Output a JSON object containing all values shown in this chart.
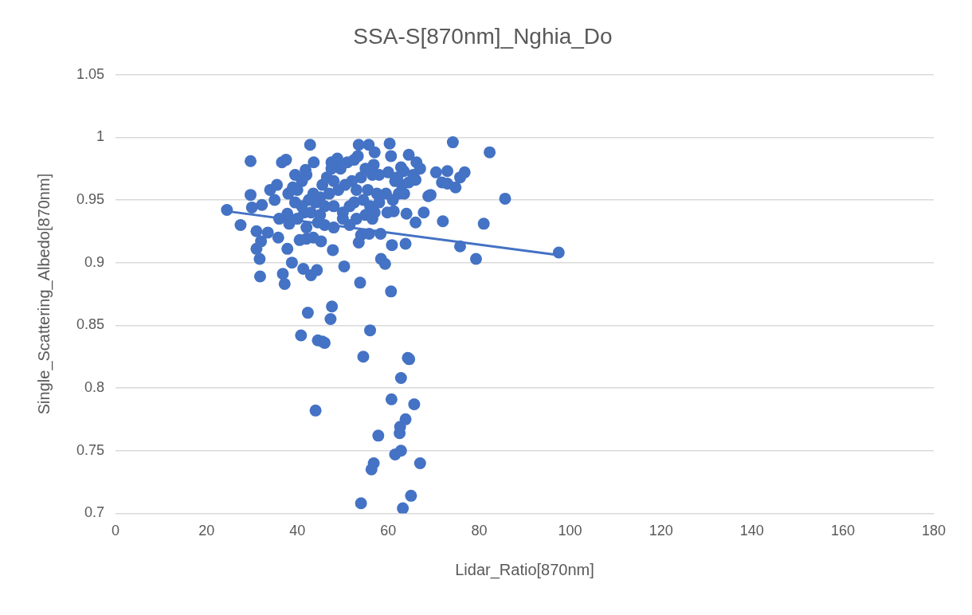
{
  "chart_data": {
    "type": "scatter",
    "title": "SSA-S[870nm]_Nghia_Do",
    "xlabel": "Lidar_Ratio[870nm]",
    "ylabel": "Single_Scattering_Albedo[870nm]",
    "xlim": [
      0,
      180
    ],
    "xticks": [
      0,
      20,
      40,
      60,
      80,
      100,
      120,
      140,
      160,
      180
    ],
    "ylim": [
      0.7,
      1.05
    ],
    "yticks": [
      0.7,
      0.75,
      0.8,
      0.85,
      0.9,
      0.95,
      1,
      1.05
    ],
    "grid": "y",
    "series": [
      {
        "type": "scatter",
        "marker": "circle",
        "color": "#4472c4",
        "x": [
          24.5,
          27.5,
          29.7,
          29.7,
          30,
          31,
          31,
          31.7,
          31.8,
          32,
          32.2,
          33.5,
          34,
          35,
          35.5,
          35.8,
          36,
          36.6,
          36.8,
          37.2,
          37.5,
          37.8,
          37.8,
          38.2,
          38.8,
          39,
          39.5,
          40.5,
          40.8,
          41.3,
          41.8,
          42,
          42.3,
          42.8,
          43,
          43.6,
          44,
          44.3,
          44.5,
          45.5,
          46,
          45.2,
          47.6,
          47.3,
          47.8,
          50.3,
          53.8,
          54,
          54.5,
          56,
          56.3,
          56.8,
          57.8,
          58.4,
          59.3,
          60.6,
          60.7,
          61.5,
          62.5,
          62.6,
          62.8,
          62.8,
          63.2,
          63.8,
          64.3,
          64.6,
          65,
          65.7,
          67,
          63.8,
          64,
          61.2,
          60.8,
          58.3,
          55.8,
          66,
          67.8,
          68.8,
          69.3,
          70.5,
          71.8,
          72,
          73,
          73,
          74.2,
          74.8,
          75.8,
          75.8,
          76.8,
          79.3,
          81,
          82.3,
          85.7,
          97.5,
          60.3,
          60.6,
          64.5,
          66.2,
          67,
          62.8,
          63.4,
          65.5,
          66,
          64.5,
          63,
          61.5,
          62.3,
          63.5,
          60,
          59.5,
          61,
          59.8,
          62,
          53.5,
          55.7,
          57,
          53.3,
          51,
          52.5,
          56.8,
          55,
          58,
          56.5,
          54,
          52,
          50.5,
          53,
          55.5,
          57.5,
          54.5,
          52.5,
          51.5,
          56,
          58,
          57,
          55,
          53,
          51.5,
          54,
          53.5,
          56.5,
          50,
          50,
          48.8,
          47.5,
          49.5,
          47.5,
          46.5,
          48,
          45.5,
          49,
          47,
          45,
          43.5,
          42,
          41,
          40,
          42.5,
          44,
          46,
          48,
          43,
          41.5,
          40,
          44.5,
          46,
          48,
          42,
          43.5,
          39.5,
          38,
          41,
          45
        ],
        "values": [
          0.942,
          0.93,
          0.981,
          0.954,
          0.944,
          0.925,
          0.911,
          0.903,
          0.889,
          0.917,
          0.946,
          0.924,
          0.958,
          0.95,
          0.962,
          0.92,
          0.935,
          0.98,
          0.891,
          0.883,
          0.982,
          0.911,
          0.939,
          0.931,
          0.9,
          0.96,
          0.97,
          0.918,
          0.842,
          0.895,
          0.974,
          0.919,
          0.86,
          0.994,
          0.89,
          0.98,
          0.782,
          0.894,
          0.838,
          0.837,
          0.836,
          0.917,
          0.865,
          0.855,
          0.91,
          0.897,
          0.884,
          0.708,
          0.825,
          0.846,
          0.735,
          0.74,
          0.762,
          0.903,
          0.899,
          0.877,
          0.791,
          0.747,
          0.764,
          0.769,
          0.75,
          0.808,
          0.704,
          0.775,
          0.824,
          0.823,
          0.714,
          0.787,
          0.74,
          0.915,
          0.939,
          0.941,
          0.914,
          0.923,
          0.923,
          0.932,
          0.94,
          0.953,
          0.954,
          0.972,
          0.964,
          0.933,
          0.973,
          0.963,
          0.996,
          0.96,
          0.913,
          0.968,
          0.972,
          0.903,
          0.931,
          0.988,
          0.951,
          0.908,
          0.995,
          0.985,
          0.986,
          0.98,
          0.975,
          0.976,
          0.973,
          0.97,
          0.966,
          0.964,
          0.962,
          0.965,
          0.955,
          0.955,
          0.972,
          0.955,
          0.95,
          0.94,
          0.968,
          0.994,
          0.994,
          0.988,
          0.985,
          0.98,
          0.982,
          0.978,
          0.975,
          0.97,
          0.97,
          0.968,
          0.965,
          0.962,
          0.958,
          0.958,
          0.955,
          0.95,
          0.948,
          0.945,
          0.945,
          0.948,
          0.94,
          0.938,
          0.935,
          0.93,
          0.922,
          0.916,
          0.935,
          0.94,
          0.935,
          0.983,
          0.98,
          0.975,
          0.975,
          0.968,
          0.965,
          0.962,
          0.958,
          0.955,
          0.952,
          0.955,
          0.97,
          0.965,
          0.958,
          0.95,
          0.948,
          0.945,
          0.945,
          0.94,
          0.94,
          0.935,
          0.932,
          0.93,
          0.928,
          0.928,
          0.92,
          0.948,
          0.955,
          0.945,
          0.938
        ]
      },
      {
        "type": "line",
        "color": "#4472c4",
        "x": [
          24.5,
          97.5
        ],
        "values": [
          0.941,
          0.906
        ]
      }
    ]
  }
}
